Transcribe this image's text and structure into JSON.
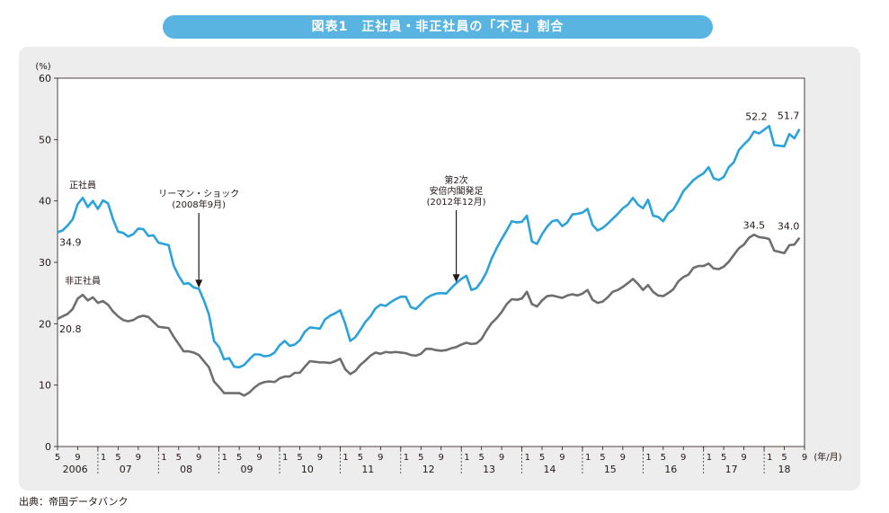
{
  "title": "図表1　正社員・非正社員の「不足」割合",
  "source": "出典：帝国データバンク",
  "colors": {
    "title_bg": "#5ab4e1",
    "panel_bg": "#ededed",
    "series_regular": "#2ba3d9",
    "series_nonregular": "#6e6e6e"
  },
  "chart_data": {
    "type": "line",
    "ylabel": "(%)",
    "xlabel": "(年/月)",
    "ylim": [
      0,
      60
    ],
    "yticks": [
      0,
      10,
      20,
      30,
      40,
      50,
      60
    ],
    "grid": false,
    "x_start": "2006/05",
    "x_end": "2018/09",
    "month_tick_labels": [
      "1",
      "5",
      "9"
    ],
    "year_labels": [
      "2006",
      "07",
      "08",
      "09",
      "10",
      "11",
      "12",
      "13",
      "14",
      "15",
      "16",
      "17",
      "18"
    ],
    "series": [
      {
        "name": "正社員",
        "values": [
          34.9,
          35.2,
          36,
          37,
          39.5,
          40.5,
          39,
          40,
          38.7,
          40.1,
          39.6,
          37,
          35,
          34.8,
          34.2,
          34.6,
          35.5,
          35.4,
          34.3,
          34.4,
          33.2,
          33,
          32.8,
          29.5,
          27.8,
          26.5,
          26.6,
          25.9,
          25.7,
          23.8,
          21.5,
          17.2,
          16.2,
          14.2,
          14.4,
          13,
          12.9,
          13.3,
          14.2,
          15,
          15,
          14.7,
          14.8,
          15.3,
          16.5,
          17.2,
          16.4,
          16.6,
          17.3,
          18.7,
          19.4,
          19.3,
          19.2,
          20.7,
          21.3,
          21.7,
          22.2,
          20,
          17.2,
          17.8,
          19,
          20.3,
          21.2,
          22.5,
          23.1,
          22.9,
          23.5,
          24,
          24.4,
          24.4,
          22.7,
          22.4,
          23.2,
          24.1,
          24.6,
          24.9,
          25,
          24.9,
          25.8,
          26.6,
          27.3,
          27.8,
          25.5,
          25.8,
          26.9,
          28.4,
          30.6,
          32.3,
          33.8,
          35.2,
          36.7,
          36.5,
          36.6,
          37.6,
          33.4,
          33,
          34.6,
          35.8,
          36.7,
          36.9,
          35.9,
          36.5,
          37.8,
          37.9,
          38.1,
          38.7,
          36.1,
          35.2,
          35.6,
          36.3,
          37.1,
          37.9,
          38.8,
          39.4,
          40.5,
          39.4,
          38.8,
          40.2,
          37.6,
          37.4,
          36.7,
          38,
          38.6,
          40,
          41.6,
          42.5,
          43.4,
          44,
          44.5,
          45.5,
          43.7,
          43.4,
          43.9,
          45.5,
          46.3,
          48.3,
          49.2,
          50,
          51.3,
          51,
          51.6,
          52.2,
          49.1,
          49,
          48.9,
          50.9,
          50.2,
          51.7
        ]
      },
      {
        "name": "非正社員",
        "values": [
          20.8,
          21.2,
          21.6,
          22.4,
          24.1,
          24.7,
          23.8,
          24.3,
          23.4,
          23.7,
          23.1,
          22,
          21.2,
          20.6,
          20.4,
          20.6,
          21.1,
          21.3,
          21.1,
          20.3,
          19.5,
          19.4,
          19.3,
          17.9,
          16.7,
          15.5,
          15.5,
          15.3,
          14.9,
          13.9,
          12.9,
          10.6,
          9.7,
          8.7,
          8.7,
          8.7,
          8.7,
          8.3,
          8.8,
          9.6,
          10.2,
          10.5,
          10.6,
          10.5,
          11.1,
          11.4,
          11.4,
          12,
          12,
          13,
          13.9,
          13.8,
          13.7,
          13.7,
          13.6,
          13.9,
          14.3,
          12.6,
          11.8,
          12.3,
          13.3,
          14,
          14.8,
          15.3,
          15.1,
          15.4,
          15.3,
          15.4,
          15.3,
          15.2,
          14.9,
          14.8,
          15.1,
          15.9,
          15.9,
          15.7,
          15.6,
          15.7,
          16,
          16.2,
          16.6,
          16.9,
          16.7,
          16.8,
          17.5,
          18.9,
          20.1,
          20.9,
          21.9,
          23.2,
          24,
          23.9,
          24.1,
          25.2,
          23.2,
          22.8,
          23.8,
          24.5,
          24.6,
          24.4,
          24.2,
          24.6,
          24.8,
          24.6,
          24.9,
          25.5,
          23.9,
          23.4,
          23.6,
          24.3,
          25.2,
          25.5,
          26,
          26.6,
          27.3,
          26.5,
          25.5,
          26.3,
          25.2,
          24.6,
          24.5,
          25,
          25.6,
          26.9,
          27.6,
          28,
          29.1,
          29.4,
          29.4,
          29.8,
          29,
          28.9,
          29.3,
          30.1,
          31.2,
          32.3,
          32.9,
          34,
          34.5,
          34.1,
          34,
          33.8,
          31.9,
          31.7,
          31.5,
          32.8,
          32.9,
          34
        ]
      }
    ],
    "annotations": [
      {
        "text": "リーマン・ショック",
        "sub": "(2008年9月)",
        "x": "2008/09"
      },
      {
        "text": "第2次",
        "line2": "安倍内閣発足",
        "sub": "(2012年12月)",
        "x": "2012/12"
      }
    ],
    "data_labels": {
      "regular_start": "34.9",
      "nonregular_start": "20.8",
      "regular_peak": "52.2",
      "regular_end": "51.7",
      "nonregular_peak": "34.5",
      "nonregular_end": "34.0"
    }
  }
}
